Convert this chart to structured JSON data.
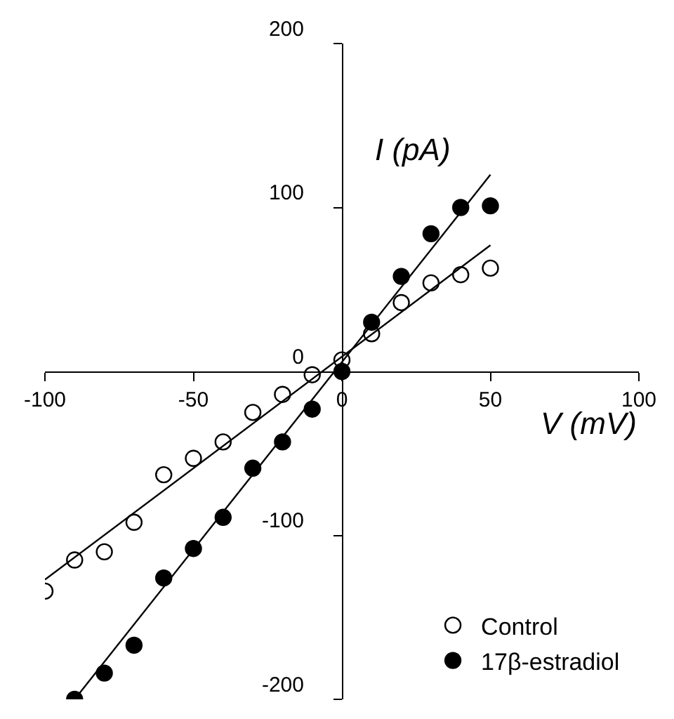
{
  "chart_data": {
    "type": "scatter",
    "xlabel": "V (mV)",
    "ylabel": "I (pA)",
    "xlim": [
      -100,
      100
    ],
    "xticks": [
      -100,
      -50,
      0,
      50,
      100
    ],
    "ylim": [
      -200,
      200
    ],
    "yticks": [
      -200,
      -100,
      0,
      100,
      200
    ],
    "legend": "bottom right",
    "series": [
      {
        "name": "Control",
        "color": "#000000",
        "marker": "circle-open",
        "x": [
          -100,
          -90,
          -80,
          -70,
          -60,
          -50,
          -40,
          -30,
          -20,
          -10,
          0,
          10,
          20,
          30,
          40,
          50
        ],
        "values": [
          -134,
          -115,
          -110,
          -92,
          -63,
          -53,
          -43,
          -25,
          -14,
          -2,
          7,
          23,
          42,
          54,
          59,
          63
        ]
      },
      {
        "name": "17β-estradiol",
        "color": "#000000",
        "marker": "circle",
        "x": [
          -90,
          -80,
          -70,
          -60,
          -50,
          -40,
          -30,
          -20,
          -10,
          0,
          10,
          20,
          30,
          40,
          50
        ],
        "values": [
          -200,
          -184,
          -167,
          -126,
          -108,
          -89,
          -59,
          -43,
          -23,
          0,
          30,
          58,
          84,
          100,
          101
        ]
      },
      {
        "type": "line",
        "color": "#000000",
        "x": [
          -100,
          50
        ],
        "values": [
          -127,
          77
        ]
      },
      {
        "type": "line",
        "color": "#000000",
        "x": [
          -90,
          50
        ],
        "values": [
          -200,
          120
        ]
      }
    ]
  }
}
